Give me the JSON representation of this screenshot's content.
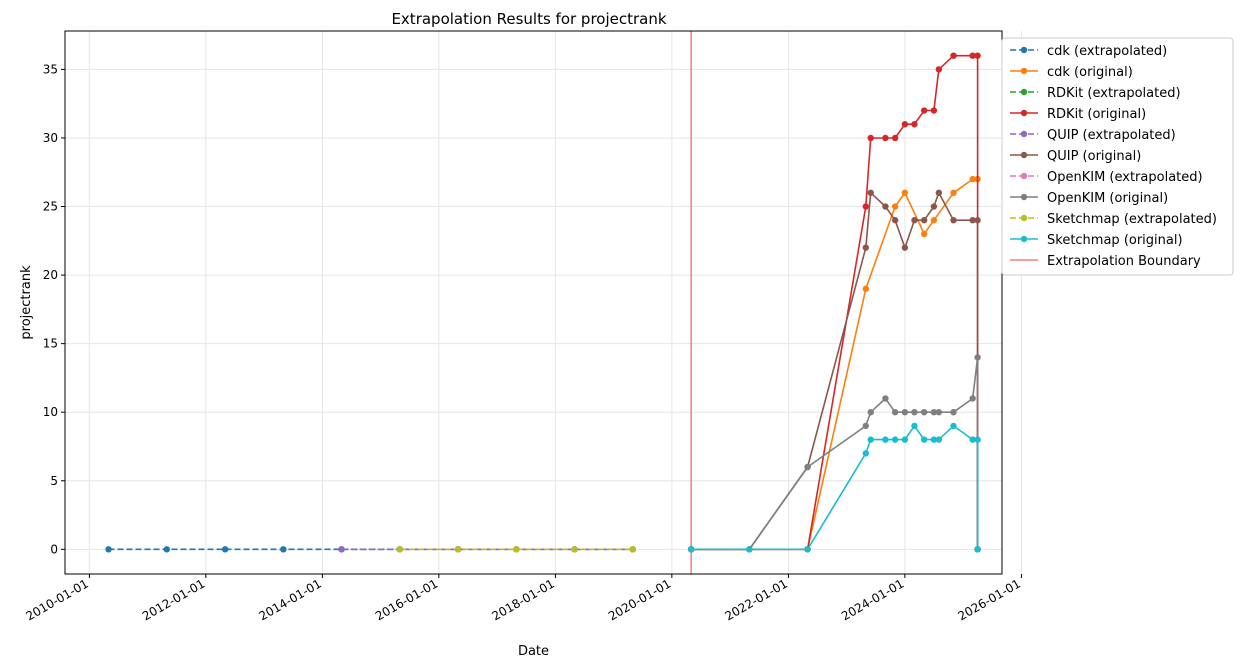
{
  "chart_data": {
    "type": "line",
    "title": "Extrapolation Results for projectrank",
    "xlabel": "Date",
    "ylabel": "projectrank",
    "x_type": "date",
    "xlim": [
      "2009-08-01",
      "2025-09-01"
    ],
    "ylim": [
      -1.8,
      37.8
    ],
    "x_ticks": [
      "2010-01-01",
      "2012-01-01",
      "2014-01-01",
      "2016-01-01",
      "2018-01-01",
      "2020-01-01",
      "2022-01-01",
      "2024-01-01",
      "2026-01-01"
    ],
    "y_ticks": [
      0,
      5,
      10,
      15,
      20,
      25,
      30,
      35
    ],
    "grid": true,
    "legend_position": "outside-top-right",
    "boundary": {
      "label": "Extrapolation Boundary",
      "date": "2020-05-01",
      "color": "#f08080"
    },
    "series": [
      {
        "name": "cdk (extrapolated)",
        "color": "#1f77b4",
        "dashed": true,
        "points": [
          [
            "2010-05-01",
            0
          ],
          [
            "2011-05-01",
            0
          ],
          [
            "2012-05-01",
            0
          ],
          [
            "2013-05-01",
            0
          ],
          [
            "2014-05-01",
            0
          ],
          [
            "2015-05-01",
            0
          ],
          [
            "2016-05-01",
            0
          ],
          [
            "2017-05-01",
            0
          ],
          [
            "2018-05-01",
            0
          ],
          [
            "2019-05-01",
            0
          ]
        ]
      },
      {
        "name": "cdk (original)",
        "color": "#ff7f0e",
        "dashed": false,
        "points": [
          [
            "2020-05-01",
            0
          ],
          [
            "2021-05-01",
            0
          ],
          [
            "2022-05-01",
            0
          ],
          [
            "2023-05-01",
            19
          ],
          [
            "2023-11-01",
            25
          ],
          [
            "2024-01-01",
            26
          ],
          [
            "2024-05-01",
            23
          ],
          [
            "2024-07-01",
            24
          ],
          [
            "2024-11-01",
            26
          ],
          [
            "2025-03-01",
            27
          ],
          [
            "2025-04-01",
            27
          ]
        ]
      },
      {
        "name": "RDKit (extrapolated)",
        "color": "#2ca02c",
        "dashed": true,
        "points": []
      },
      {
        "name": "RDKit (original)",
        "color": "#d62728",
        "dashed": false,
        "points": [
          [
            "2020-05-01",
            0
          ],
          [
            "2021-05-01",
            0
          ],
          [
            "2022-05-01",
            0
          ],
          [
            "2023-05-01",
            25
          ],
          [
            "2023-06-01",
            30
          ],
          [
            "2023-09-01",
            30
          ],
          [
            "2023-11-01",
            30
          ],
          [
            "2024-01-01",
            31
          ],
          [
            "2024-03-01",
            31
          ],
          [
            "2024-05-01",
            32
          ],
          [
            "2024-07-01",
            32
          ],
          [
            "2024-08-01",
            35
          ],
          [
            "2024-11-01",
            36
          ],
          [
            "2025-03-01",
            36
          ],
          [
            "2025-04-01",
            36
          ],
          [
            "2025-04-01",
            0
          ]
        ]
      },
      {
        "name": "QUIP (extrapolated)",
        "color": "#9467bd",
        "dashed": true,
        "points": [
          [
            "2014-05-01",
            0
          ],
          [
            "2015-05-01",
            0
          ],
          [
            "2016-05-01",
            0
          ],
          [
            "2017-05-01",
            0
          ],
          [
            "2018-05-01",
            0
          ],
          [
            "2019-05-01",
            0
          ]
        ]
      },
      {
        "name": "QUIP (original)",
        "color": "#8c564b",
        "dashed": false,
        "points": [
          [
            "2020-05-01",
            0
          ],
          [
            "2021-05-01",
            0
          ],
          [
            "2022-05-01",
            6
          ],
          [
            "2023-05-01",
            22
          ],
          [
            "2023-06-01",
            26
          ],
          [
            "2023-09-01",
            25
          ],
          [
            "2023-11-01",
            24
          ],
          [
            "2024-01-01",
            22
          ],
          [
            "2024-03-01",
            24
          ],
          [
            "2024-05-01",
            24
          ],
          [
            "2024-07-01",
            25
          ],
          [
            "2024-08-01",
            26
          ],
          [
            "2024-11-01",
            24
          ],
          [
            "2025-03-01",
            24
          ],
          [
            "2025-04-01",
            24
          ],
          [
            "2025-04-01",
            0
          ]
        ]
      },
      {
        "name": "OpenKIM (extrapolated)",
        "color": "#e377c2",
        "dashed": true,
        "points": []
      },
      {
        "name": "OpenKIM (original)",
        "color": "#7f7f7f",
        "dashed": false,
        "points": [
          [
            "2020-05-01",
            0
          ],
          [
            "2021-05-01",
            0
          ],
          [
            "2022-05-01",
            6
          ],
          [
            "2023-05-01",
            9
          ],
          [
            "2023-06-01",
            10
          ],
          [
            "2023-09-01",
            11
          ],
          [
            "2023-11-01",
            10
          ],
          [
            "2024-01-01",
            10
          ],
          [
            "2024-03-01",
            10
          ],
          [
            "2024-05-01",
            10
          ],
          [
            "2024-07-01",
            10
          ],
          [
            "2024-08-01",
            10
          ],
          [
            "2024-11-01",
            10
          ],
          [
            "2025-03-01",
            11
          ],
          [
            "2025-04-01",
            14
          ],
          [
            "2025-04-01",
            0
          ]
        ]
      },
      {
        "name": "Sketchmap (extrapolated)",
        "color": "#bcbd22",
        "dashed": true,
        "points": [
          [
            "2015-05-01",
            0
          ],
          [
            "2016-05-01",
            0
          ],
          [
            "2017-05-01",
            0
          ],
          [
            "2018-05-01",
            0
          ],
          [
            "2019-05-01",
            0
          ]
        ]
      },
      {
        "name": "Sketchmap (original)",
        "color": "#17becf",
        "dashed": false,
        "points": [
          [
            "2020-05-01",
            0
          ],
          [
            "2021-05-01",
            0
          ],
          [
            "2022-05-01",
            0
          ],
          [
            "2023-05-01",
            7
          ],
          [
            "2023-06-01",
            8
          ],
          [
            "2023-09-01",
            8
          ],
          [
            "2023-11-01",
            8
          ],
          [
            "2024-01-01",
            8
          ],
          [
            "2024-03-01",
            9
          ],
          [
            "2024-05-01",
            8
          ],
          [
            "2024-07-01",
            8
          ],
          [
            "2024-08-01",
            8
          ],
          [
            "2024-11-01",
            9
          ],
          [
            "2025-03-01",
            8
          ],
          [
            "2025-04-01",
            8
          ],
          [
            "2025-04-01",
            0
          ]
        ]
      }
    ]
  }
}
